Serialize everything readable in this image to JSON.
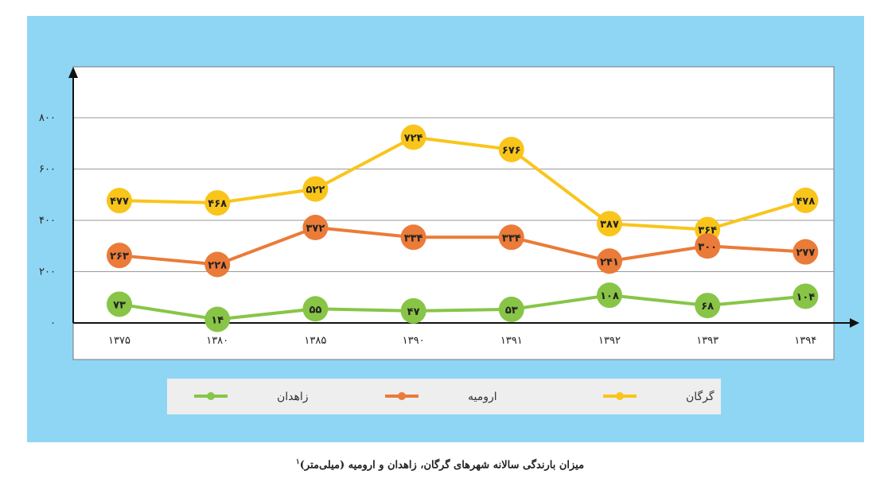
{
  "caption": {
    "text": "میزان بارندگی سالانه شهرهای گرگان، زاهدان و ارومیه (میلی‌متر)",
    "footnote": "۱"
  },
  "colors": {
    "panel_background": "#8fd6f4",
    "plot_background": "#ffffff",
    "grid": "#9a9a9a",
    "axis": "#111111",
    "legend_background": "#eeeeee"
  },
  "chart_data": {
    "type": "line",
    "title": "",
    "xlabel": "",
    "ylabel": "",
    "categories": [
      "۱۳۷۵",
      "۱۳۸۰",
      "۱۳۸۵",
      "۱۳۹۰",
      "۱۳۹۱",
      "۱۳۹۲",
      "۱۳۹۳",
      "۱۳۹۴"
    ],
    "ylim": [
      0,
      1000
    ],
    "yticks": [
      0,
      200,
      400,
      600,
      800
    ],
    "ytick_labels": [
      "۰",
      "۲۰۰",
      "۴۰۰",
      "۶۰۰",
      "۸۰۰"
    ],
    "grid": true,
    "legend_position": "bottom",
    "series": [
      {
        "name": "گرگان",
        "color": "#f9c51b",
        "values": [
          477,
          468,
          522,
          724,
          676,
          387,
          364,
          478
        ],
        "labels": [
          "۴۷۷",
          "۴۶۸",
          "۵۲۲",
          "۷۲۴",
          "۶۷۶",
          "۳۸۷",
          "۳۶۴",
          "۴۷۸"
        ]
      },
      {
        "name": "ارومیه",
        "color": "#ea7b38",
        "values": [
          263,
          228,
          372,
          334,
          334,
          241,
          300,
          277
        ],
        "labels": [
          "۲۶۳",
          "۲۲۸",
          "۳۷۲",
          "۳۳۴",
          "۳۳۴",
          "۲۴۱",
          "۳۰۰",
          "۲۷۷"
        ]
      },
      {
        "name": "زاهدان",
        "color": "#88c547",
        "values": [
          73,
          14,
          55,
          47,
          53,
          108,
          68,
          104
        ],
        "labels": [
          "۷۳",
          "۱۴",
          "۵۵",
          "۴۷",
          "۵۳",
          "۱۰۸",
          "۶۸",
          "۱۰۴"
        ]
      }
    ]
  }
}
